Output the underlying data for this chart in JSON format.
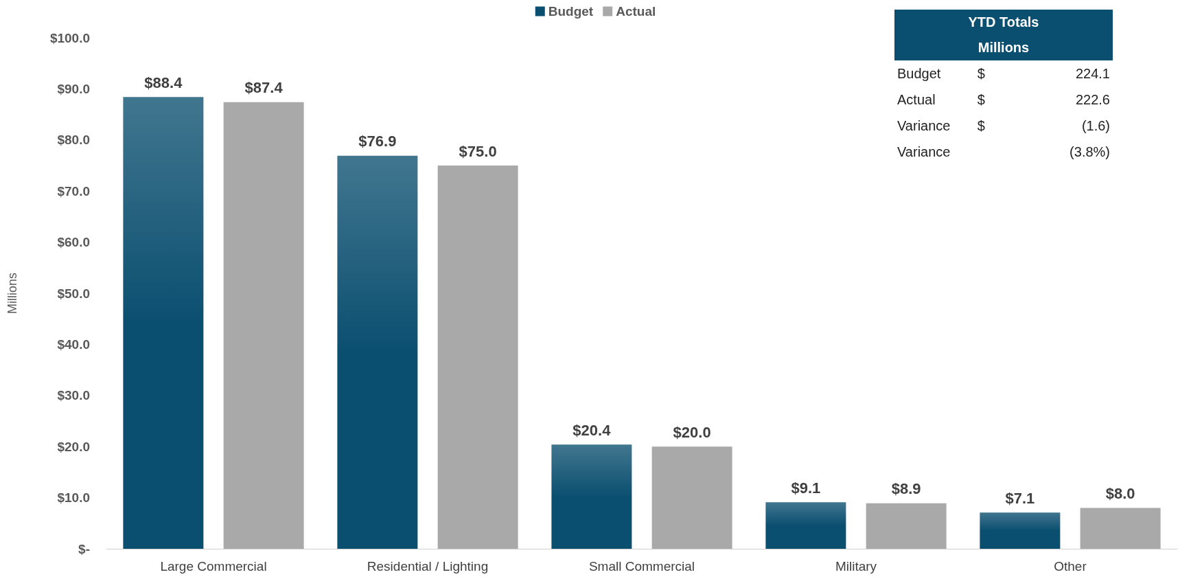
{
  "chart_data": {
    "type": "bar",
    "ylabel": "Millions",
    "categories": [
      "Large Commercial",
      "Residential / Lighting",
      "Small Commercial",
      "Military",
      "Other"
    ],
    "series": [
      {
        "name": "Budget",
        "color": "#0b4f70",
        "values": [
          88.4,
          76.9,
          20.4,
          9.1,
          7.1
        ],
        "value_labels": [
          "$88.4",
          "$76.9",
          "$20.4",
          "$9.1",
          "$7.1"
        ]
      },
      {
        "name": "Actual",
        "color": "#a9a9a9",
        "values": [
          87.4,
          75.0,
          20.0,
          8.9,
          8.0
        ],
        "value_labels": [
          "$87.4",
          "$75.0",
          "$20.0",
          "$8.9",
          "$8.0"
        ]
      }
    ],
    "ylim": [
      0,
      100
    ],
    "yticks": [
      {
        "value": 0,
        "label": "$-"
      },
      {
        "value": 10,
        "label": "$10.0"
      },
      {
        "value": 20,
        "label": "$20.0"
      },
      {
        "value": 30,
        "label": "$30.0"
      },
      {
        "value": 40,
        "label": "$40.0"
      },
      {
        "value": 50,
        "label": "$50.0"
      },
      {
        "value": 60,
        "label": "$60.0"
      },
      {
        "value": 70,
        "label": "$70.0"
      },
      {
        "value": 80,
        "label": "$80.0"
      },
      {
        "value": 90,
        "label": "$90.0"
      },
      {
        "value": 100,
        "label": "$100.0"
      }
    ],
    "grid": false,
    "legend": "top",
    "annotations": [
      "YTD Totals",
      "Millions",
      "Budget $ 224.1",
      "Actual $ 222.6",
      "Variance $ (1.6)",
      "Variance (3.8%)"
    ]
  }
}
